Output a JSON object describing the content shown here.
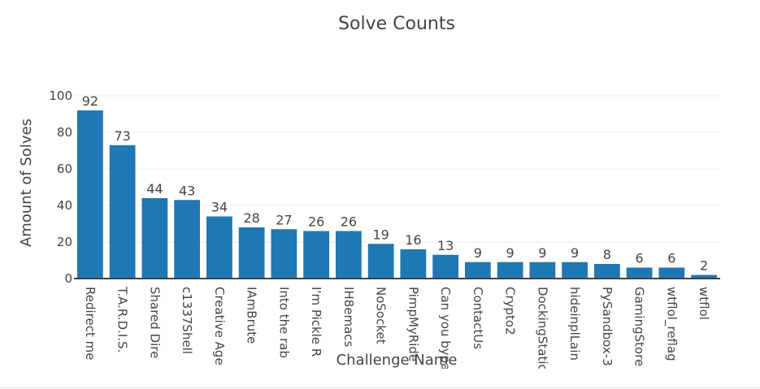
{
  "chart_data": {
    "type": "bar",
    "title": "Solve Counts",
    "xlabel": "Challenge Name",
    "ylabel": "Amount of Solves",
    "ylim": [
      0,
      100
    ],
    "yticks": [
      0,
      20,
      40,
      60,
      80,
      100
    ],
    "grid": true,
    "color": "#1f77b4",
    "categories": [
      "Redirect me",
      "T.A.R.D.I.S.",
      "Shared Dire",
      "c1337Shell",
      "Creative Age",
      "IAmBrute",
      "Into the rab",
      "I'm Pickle R",
      "IH8emacs",
      "NoSocket",
      "PimpMyRide",
      "Can you bypass",
      "ContactUs",
      "Crypto2",
      "DockingStation",
      "hideinplLain",
      "PySandbox-3",
      "GamingStore",
      "wtflol_reflag",
      "wtflol"
    ],
    "values": [
      92,
      73,
      44,
      43,
      34,
      28,
      27,
      26,
      26,
      19,
      16,
      13,
      9,
      9,
      9,
      9,
      8,
      6,
      6,
      2
    ]
  }
}
